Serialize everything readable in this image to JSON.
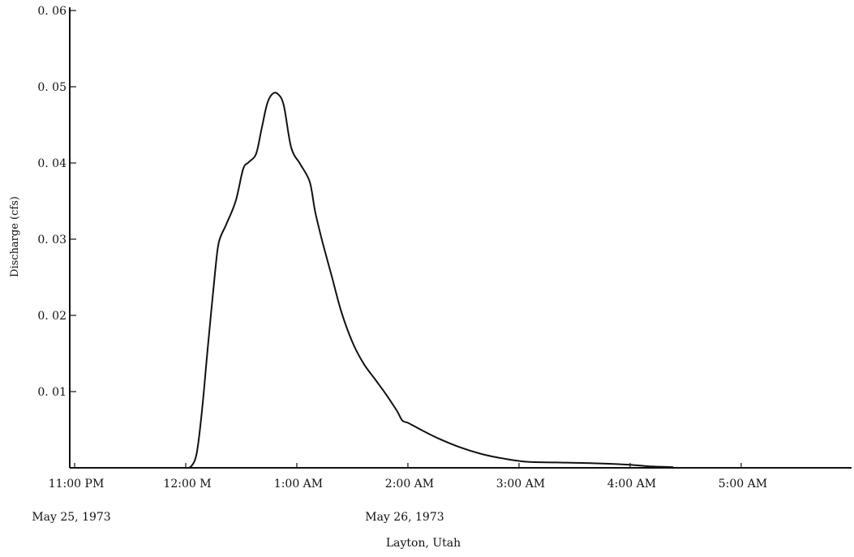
{
  "chart_data": {
    "type": "line",
    "title": "",
    "xlabel": "",
    "ylabel": "Discharge (cfs)",
    "x_unit": "minutes",
    "xlim": [
      -60,
      420
    ],
    "ylim": [
      0,
      0.06
    ],
    "yticks": [
      0.01,
      0.02,
      0.03,
      0.04,
      0.05,
      0.06
    ],
    "ytick_labels": [
      "0. 01",
      "0. 02",
      "0. 03",
      "0. 04",
      "0. 05",
      "0. 06"
    ],
    "xticks": [
      -60,
      0,
      60,
      120,
      180,
      240,
      300
    ],
    "xtick_labels": [
      "11:00 PM",
      "12:00 M",
      "1:00 AM",
      "2:00 AM",
      "3:00 AM",
      "4:00 AM",
      "5:00 AM"
    ],
    "grid": false,
    "legend": "none",
    "line_color": "#111111",
    "date_labels": [
      {
        "text": "May 25, 1973",
        "x": -60
      },
      {
        "text": "May 26, 1973",
        "x": 120
      }
    ],
    "location": "Layton, Utah",
    "series": [
      {
        "name": "",
        "points": [
          [
            0,
            0
          ],
          [
            3,
            0.0002
          ],
          [
            6,
            0.002
          ],
          [
            9,
            0.008
          ],
          [
            12,
            0.016
          ],
          [
            16,
            0.026
          ],
          [
            18,
            0.0297
          ],
          [
            22,
            0.032
          ],
          [
            27,
            0.035
          ],
          [
            31,
            0.0392
          ],
          [
            34,
            0.0401
          ],
          [
            38,
            0.0412
          ],
          [
            41,
            0.0445
          ],
          [
            44,
            0.0478
          ],
          [
            47,
            0.0491
          ],
          [
            50,
            0.049
          ],
          [
            53,
            0.0475
          ],
          [
            57,
            0.042
          ],
          [
            62,
            0.0398
          ],
          [
            67,
            0.0375
          ],
          [
            70,
            0.0335
          ],
          [
            74,
            0.0295
          ],
          [
            79,
            0.025
          ],
          [
            84,
            0.0205
          ],
          [
            90,
            0.0165
          ],
          [
            96,
            0.0137
          ],
          [
            102,
            0.0117
          ],
          [
            108,
            0.0097
          ],
          [
            114,
            0.0075
          ],
          [
            117,
            0.0062
          ],
          [
            120,
            0.0059
          ],
          [
            127,
            0.005
          ],
          [
            136,
            0.0039
          ],
          [
            148,
            0.0027
          ],
          [
            160,
            0.0018
          ],
          [
            172,
            0.0012
          ],
          [
            184,
            0.0008
          ],
          [
            200,
            0.0007
          ],
          [
            220,
            0.0006
          ],
          [
            240,
            0.0004
          ],
          [
            250,
            0.0002
          ],
          [
            263,
            0.0001
          ]
        ]
      }
    ]
  }
}
